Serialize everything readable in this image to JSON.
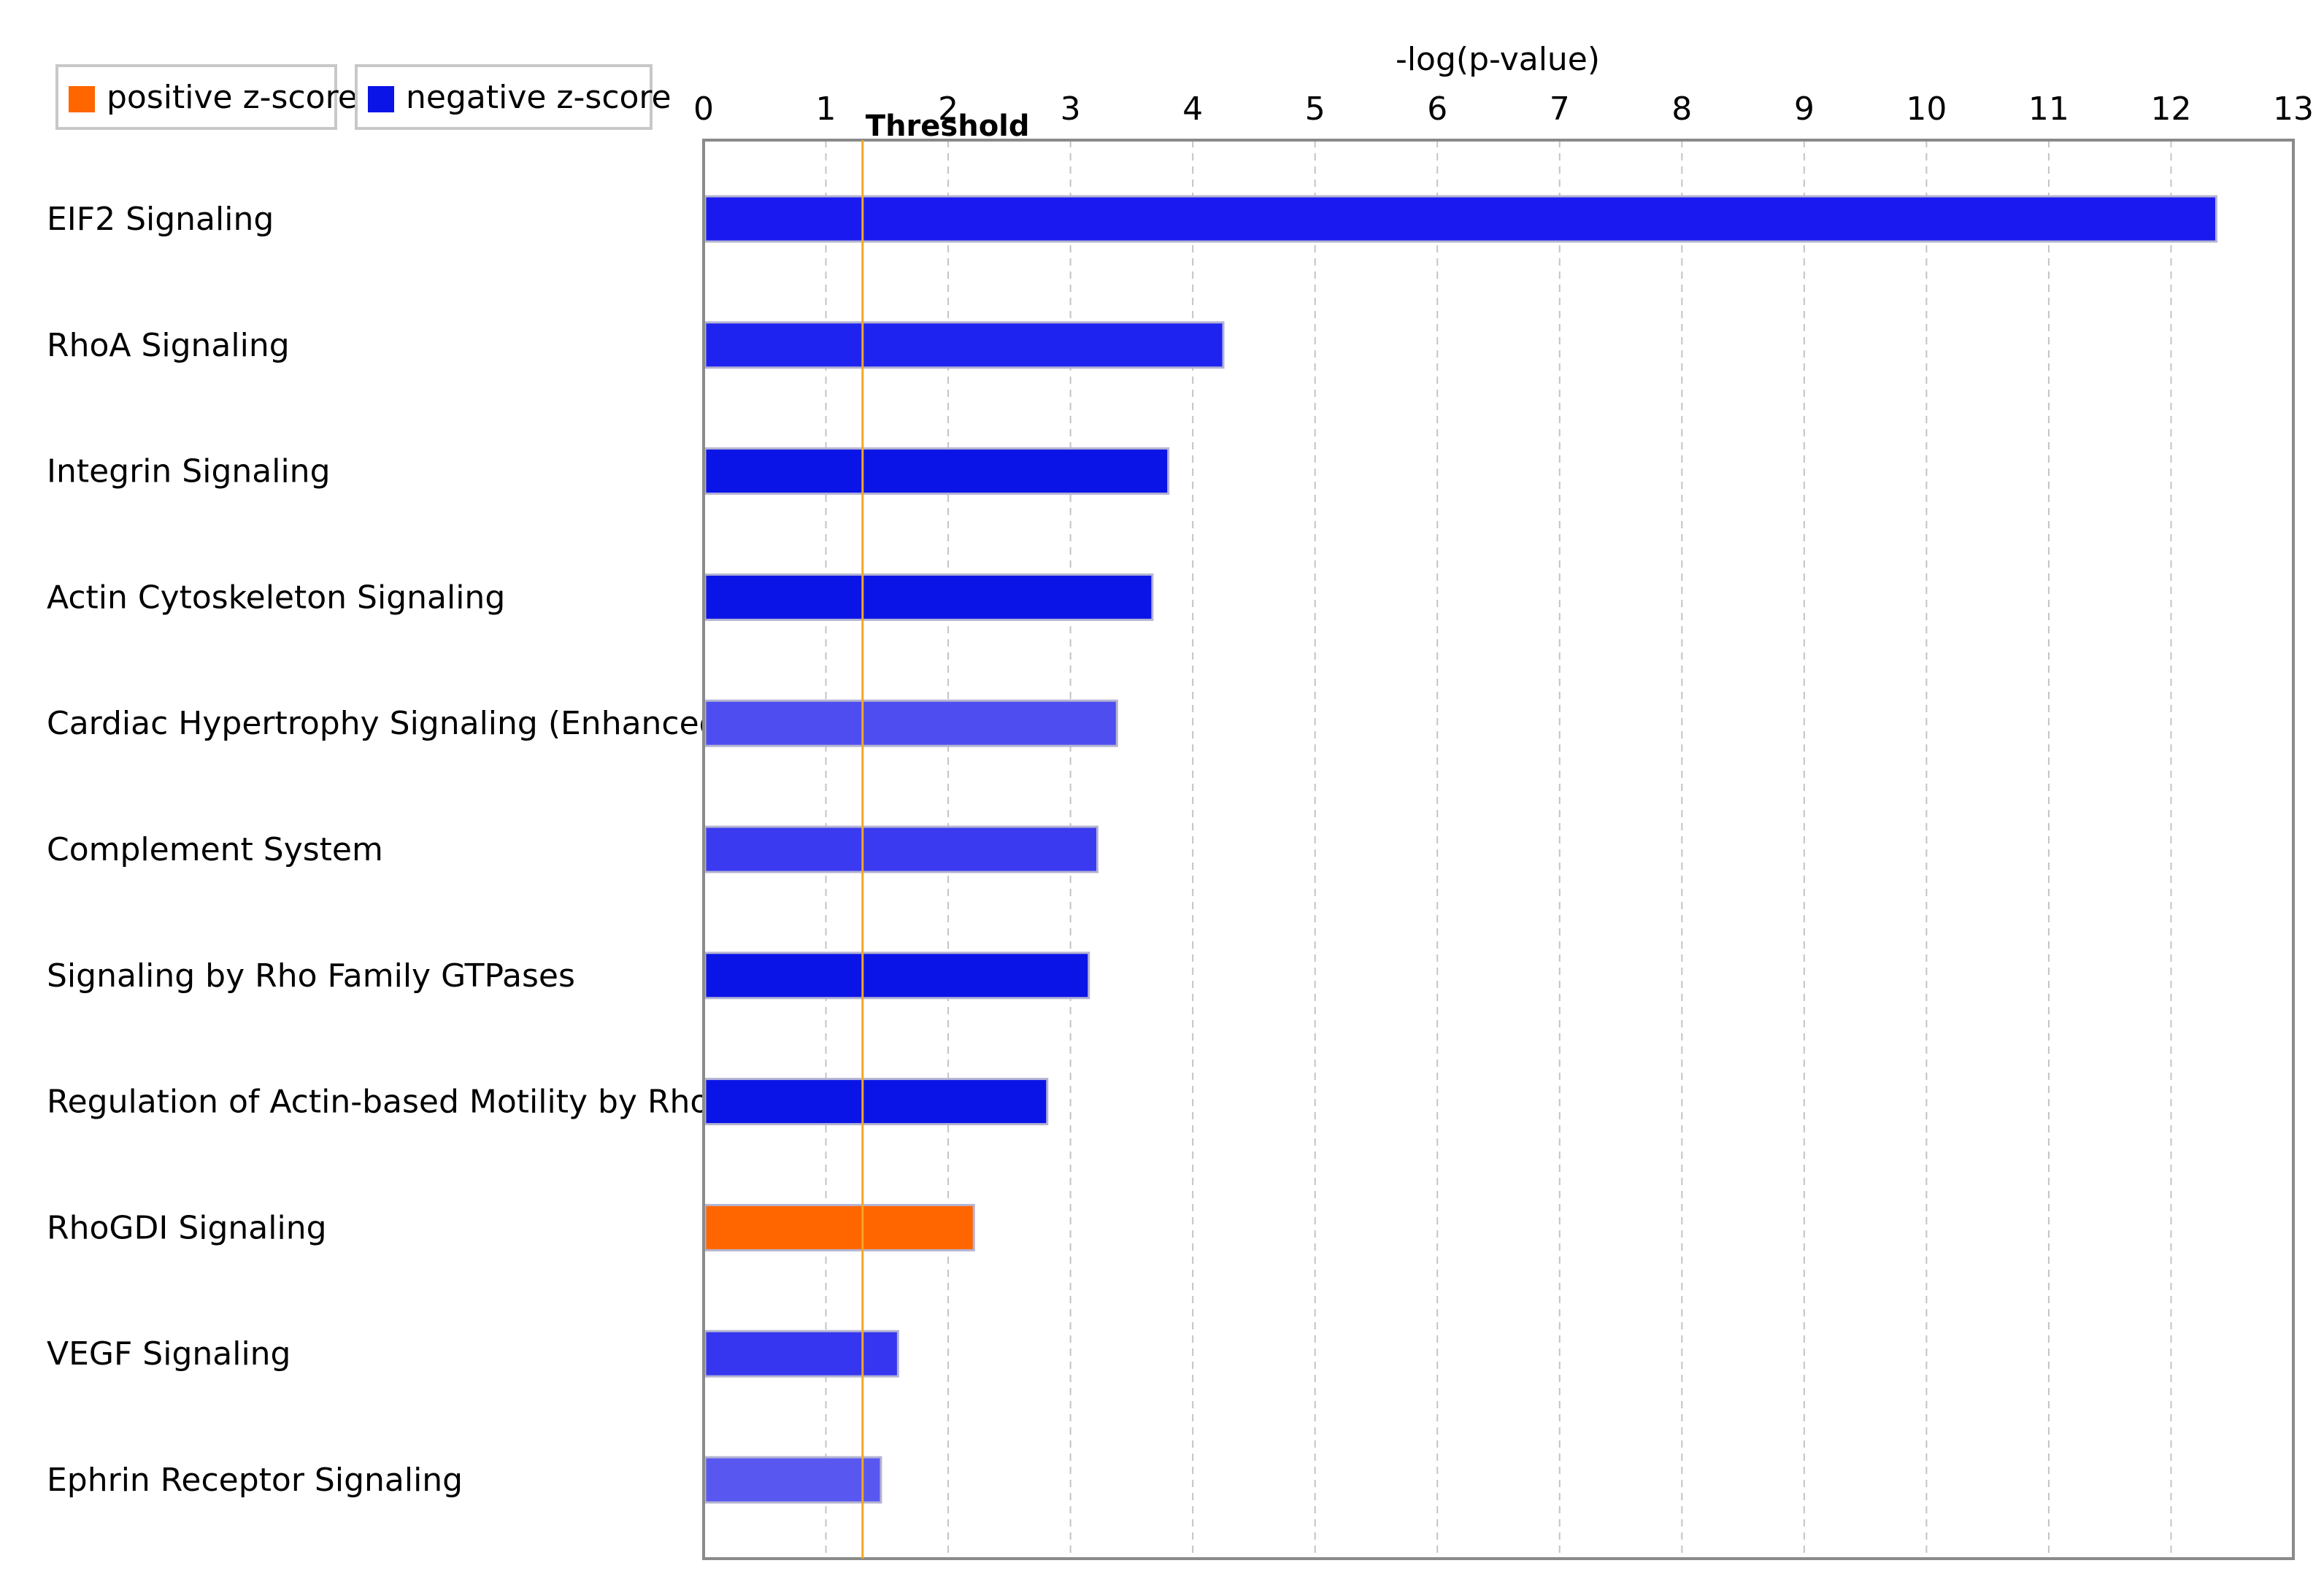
{
  "chart_data": {
    "type": "bar",
    "orientation": "horizontal",
    "title": "",
    "xlabel": "-log(p-value)",
    "ylabel": "",
    "xlim": [
      0,
      13
    ],
    "x_ticks": [
      "0",
      "1",
      "2",
      "3",
      "4",
      "5",
      "6",
      "7",
      "8",
      "9",
      "10",
      "11",
      "12",
      "13"
    ],
    "grid": "vertical dashed",
    "threshold": {
      "label": "Threshold",
      "value": 1.3,
      "color": "#f5a623"
    },
    "legend": {
      "placement": "top-left",
      "items": [
        {
          "label": "positive z-score",
          "color": "#ff6600"
        },
        {
          "label": "negative z-score",
          "color": "#0a14e6"
        }
      ]
    },
    "categories": [
      "EIF2 Signaling",
      "RhoA Signaling",
      "Integrin Signaling",
      "Actin Cytoskeleton Signaling",
      "Cardiac Hypertrophy Signaling (Enhanced)",
      "Complement System",
      "Signaling by Rho Family GTPases",
      "Regulation of Actin-based Motility by Rho",
      "RhoGDI Signaling",
      "VEGF Signaling",
      "Ephrin Receptor Signaling"
    ],
    "values": [
      12.37,
      4.25,
      3.8,
      3.67,
      3.38,
      3.22,
      3.15,
      2.81,
      2.21,
      1.59,
      1.45
    ],
    "bar_colors": [
      "#1a1af0",
      "#1f23f0",
      "#0a14e6",
      "#0a14e6",
      "#4d4df0",
      "#3a3af0",
      "#0a14e6",
      "#0a14e6",
      "#ff6600",
      "#3636f0",
      "#5858f0"
    ]
  }
}
